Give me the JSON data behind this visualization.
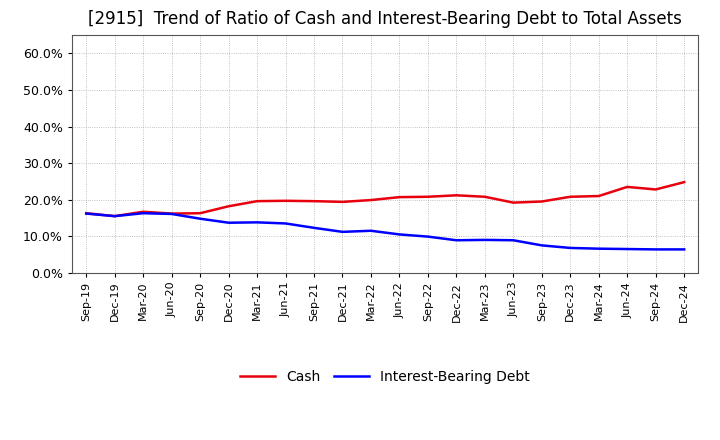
{
  "title": "[2915]  Trend of Ratio of Cash and Interest-Bearing Debt to Total Assets",
  "title_fontsize": 12,
  "title_fontweight": "normal",
  "ylim": [
    0.0,
    0.65
  ],
  "yticks": [
    0.0,
    0.1,
    0.2,
    0.3,
    0.4,
    0.5,
    0.6
  ],
  "x_labels": [
    "Sep-19",
    "Dec-19",
    "Mar-20",
    "Jun-20",
    "Sep-20",
    "Dec-20",
    "Mar-21",
    "Jun-21",
    "Sep-21",
    "Dec-21",
    "Mar-22",
    "Jun-22",
    "Sep-22",
    "Dec-22",
    "Mar-23",
    "Jun-23",
    "Sep-23",
    "Dec-23",
    "Mar-24",
    "Jun-24",
    "Sep-24",
    "Dec-24"
  ],
  "cash": [
    0.163,
    0.155,
    0.167,
    0.162,
    0.163,
    0.182,
    0.196,
    0.197,
    0.196,
    0.194,
    0.199,
    0.207,
    0.208,
    0.212,
    0.208,
    0.192,
    0.195,
    0.208,
    0.21,
    0.235,
    0.228,
    0.248
  ],
  "debt": [
    0.162,
    0.155,
    0.163,
    0.161,
    0.148,
    0.137,
    0.138,
    0.135,
    0.123,
    0.112,
    0.115,
    0.105,
    0.099,
    0.089,
    0.09,
    0.089,
    0.075,
    0.068,
    0.066,
    0.065,
    0.064,
    0.064
  ],
  "cash_color": "#e8000d",
  "debt_color": "#0000ff",
  "line_width": 1.8,
  "grid_color": "#aaaaaa",
  "background_color": "#ffffff",
  "legend_cash": "Cash",
  "legend_debt": "Interest-Bearing Debt",
  "figsize": [
    7.2,
    4.4
  ],
  "dpi": 100
}
